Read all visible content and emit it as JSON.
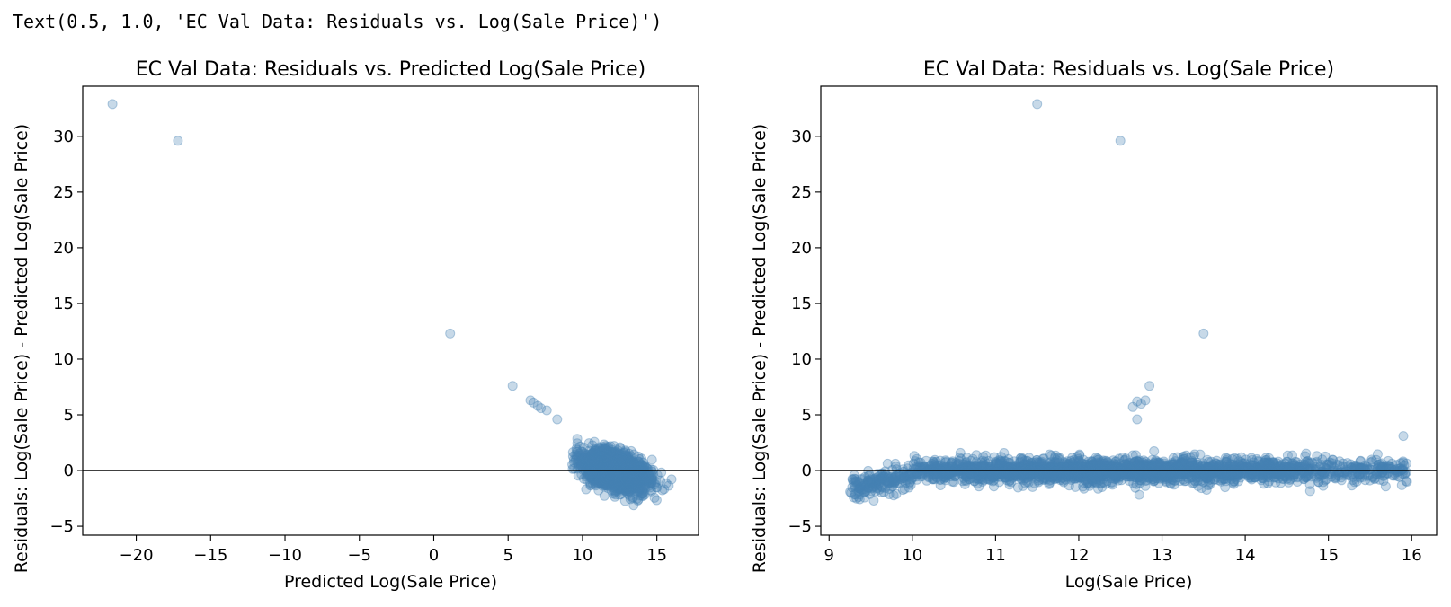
{
  "output_text": "Text(0.5, 1.0, 'EC Val Data: Residuals vs. Log(Sale Price)')",
  "chart_data": [
    {
      "type": "scatter",
      "title": "EC Val Data: Residuals vs. Predicted Log(Sale Price)",
      "xlabel": "Predicted Log(Sale Price)",
      "ylabel": "Residuals: Log(Sale Price) - Predicted Log(Sale Price)",
      "xlim": [
        -23.6,
        17.8
      ],
      "ylim": [
        -5.8,
        34.5
      ],
      "xticks": [
        -20,
        -15,
        -10,
        -5,
        0,
        5,
        10,
        15
      ],
      "yticks": [
        -5,
        0,
        5,
        10,
        15,
        20,
        25,
        30
      ],
      "hline": 0,
      "color": "#4682b4",
      "alpha": 0.3,
      "outliers": [
        {
          "x": -21.6,
          "y": 32.9
        },
        {
          "x": -17.2,
          "y": 29.6
        },
        {
          "x": 1.1,
          "y": 12.3
        },
        {
          "x": 5.3,
          "y": 7.6
        },
        {
          "x": 6.5,
          "y": 6.3
        },
        {
          "x": 6.7,
          "y": 6.1
        },
        {
          "x": 7.0,
          "y": 5.8
        },
        {
          "x": 7.2,
          "y": 5.6
        },
        {
          "x": 7.6,
          "y": 5.4
        },
        {
          "x": 8.3,
          "y": 4.6
        }
      ],
      "cloud": {
        "x_range": [
          9.3,
          16.0
        ],
        "y_range": [
          -4.0,
          3.5
        ],
        "note_x_center": 12.2
      }
    },
    {
      "type": "scatter",
      "title": "EC Val Data: Residuals vs. Log(Sale Price)",
      "xlabel": "Log(Sale Price)",
      "ylabel": "Residuals: Log(Sale Price) - Predicted Log(Sale Price)",
      "xlim": [
        8.9,
        16.3
      ],
      "ylim": [
        -5.8,
        34.5
      ],
      "xticks": [
        9,
        10,
        11,
        12,
        13,
        14,
        15,
        16
      ],
      "yticks": [
        -5,
        0,
        5,
        10,
        15,
        20,
        25,
        30
      ],
      "hline": 0,
      "color": "#4682b4",
      "alpha": 0.3,
      "outliers": [
        {
          "x": 11.5,
          "y": 32.9
        },
        {
          "x": 12.5,
          "y": 29.6
        },
        {
          "x": 13.5,
          "y": 12.3
        },
        {
          "x": 12.85,
          "y": 7.6
        },
        {
          "x": 12.7,
          "y": 6.2
        },
        {
          "x": 12.65,
          "y": 5.7
        },
        {
          "x": 12.75,
          "y": 6.0
        },
        {
          "x": 12.8,
          "y": 6.3
        },
        {
          "x": 12.7,
          "y": 4.6
        },
        {
          "x": 15.9,
          "y": 3.1
        }
      ],
      "cloud": {
        "x_range": [
          9.25,
          15.95
        ],
        "y_range": [
          -4.0,
          3.5
        ]
      }
    }
  ]
}
